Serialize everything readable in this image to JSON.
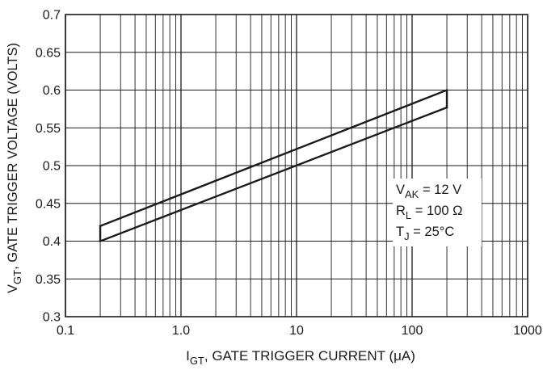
{
  "chart_data": {
    "type": "line",
    "xscale": "log",
    "yscale": "linear",
    "xlim": [
      0.1,
      1000
    ],
    "ylim": [
      0.3,
      0.7
    ],
    "x_ticks": [
      0.1,
      1,
      10,
      100,
      1000
    ],
    "x_tick_labels": [
      "0.1",
      "1.0",
      "10",
      "100",
      "1000"
    ],
    "y_ticks": [
      0.3,
      0.35,
      0.4,
      0.45,
      0.5,
      0.55,
      0.6,
      0.65,
      0.7
    ],
    "y_tick_labels": [
      "0.3",
      "0.35",
      "0.4",
      "0.45",
      "0.5",
      "0.55",
      "0.6",
      "0.65",
      "0.7"
    ],
    "grid": true,
    "xlabel": {
      "main": "I",
      "sub": "GT",
      "rest": ", GATE TRIGGER CURRENT (μA)"
    },
    "ylabel": {
      "main": "V",
      "sub": "GT",
      "rest": ", GATE TRIGGER VOLTAGE (VOLTS)"
    },
    "series": [
      {
        "x": [
          0.2,
          200
        ],
        "y": [
          0.42,
          0.6
        ]
      },
      {
        "x": [
          0.2,
          200
        ],
        "y": [
          0.4,
          0.577
        ]
      }
    ],
    "annotation": [
      {
        "main": "V",
        "sub": "AK",
        "rest": " = 12 V"
      },
      {
        "main": "R",
        "sub": "L",
        "rest": " = 100 Ω"
      },
      {
        "main": "T",
        "sub": "J",
        "rest": " = 25°C"
      }
    ],
    "colors": {
      "line": "#1a1a1a",
      "grid": "#1a1a1a",
      "background": "#ffffff"
    }
  }
}
